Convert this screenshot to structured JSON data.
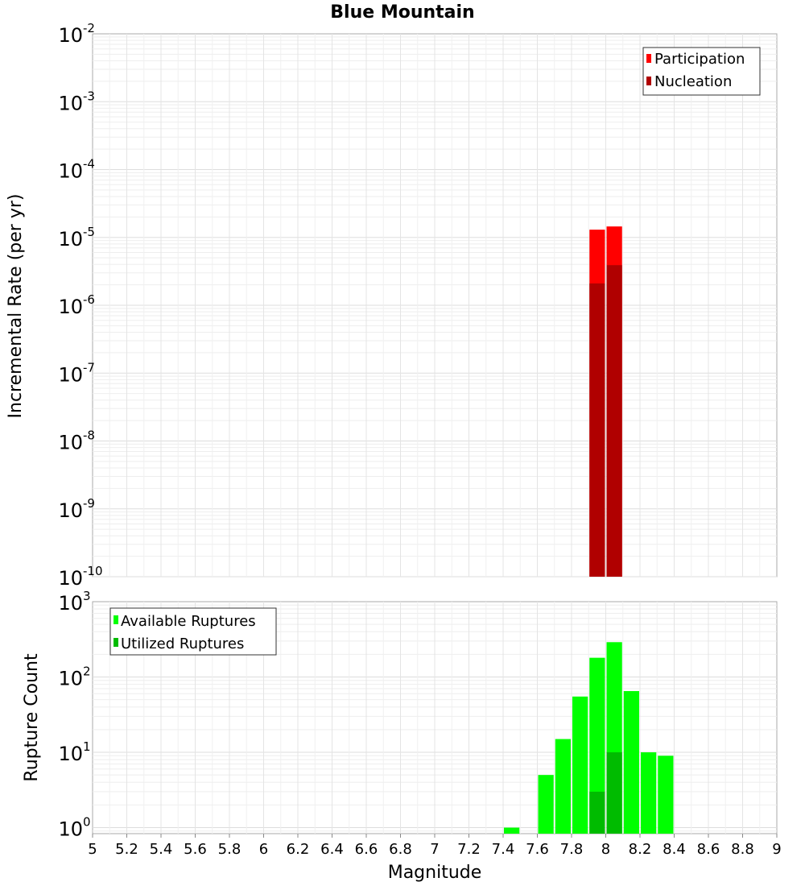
{
  "chart_data": {
    "title": "Blue Mountain",
    "xlabel": "Magnitude",
    "xlim": [
      5,
      9
    ],
    "xticks": [
      "5",
      "5.2",
      "5.4",
      "5.6",
      "5.8",
      "6",
      "6.2",
      "6.4",
      "6.6",
      "6.8",
      "7",
      "7.2",
      "7.4",
      "7.6",
      "7.8",
      "8",
      "8.2",
      "8.4",
      "8.6",
      "8.8",
      "9"
    ],
    "panels": [
      {
        "type": "bar",
        "ylabel": "Incremental Rate (per yr)",
        "yscale": "log",
        "ylim_exp": [
          -10,
          -2
        ],
        "ytick_exponents": [
          "-2",
          "-3",
          "-4",
          "-5",
          "-6",
          "-7",
          "-8",
          "-9",
          "-10"
        ],
        "legend_position": "top-right",
        "series": [
          {
            "name": "Participation",
            "color": "#ff0000",
            "x": [
              7.95,
              8.05
            ],
            "values": [
              1.3e-05,
              1.45e-05
            ]
          },
          {
            "name": "Nucleation",
            "color": "#b00000",
            "x": [
              7.95,
              8.05
            ],
            "values": [
              2.1e-06,
              3.9e-06
            ]
          }
        ]
      },
      {
        "type": "bar",
        "ylabel": "Rupture Count",
        "yscale": "log",
        "ylim_exp": [
          0,
          3
        ],
        "ytick_exponents": [
          "3",
          "2",
          "1",
          "0"
        ],
        "legend_position": "top-left",
        "series": [
          {
            "name": "Available Ruptures",
            "color": "#00ff00",
            "x": [
              7.45,
              7.65,
              7.75,
              7.85,
              7.95,
              8.05,
              8.15,
              8.25,
              8.35
            ],
            "values": [
              1,
              5,
              15,
              55,
              180,
              290,
              65,
              10,
              9
            ]
          },
          {
            "name": "Utilized Ruptures",
            "color": "#00bb00",
            "x": [
              7.95,
              8.05
            ],
            "values": [
              3,
              10
            ]
          }
        ]
      }
    ]
  }
}
